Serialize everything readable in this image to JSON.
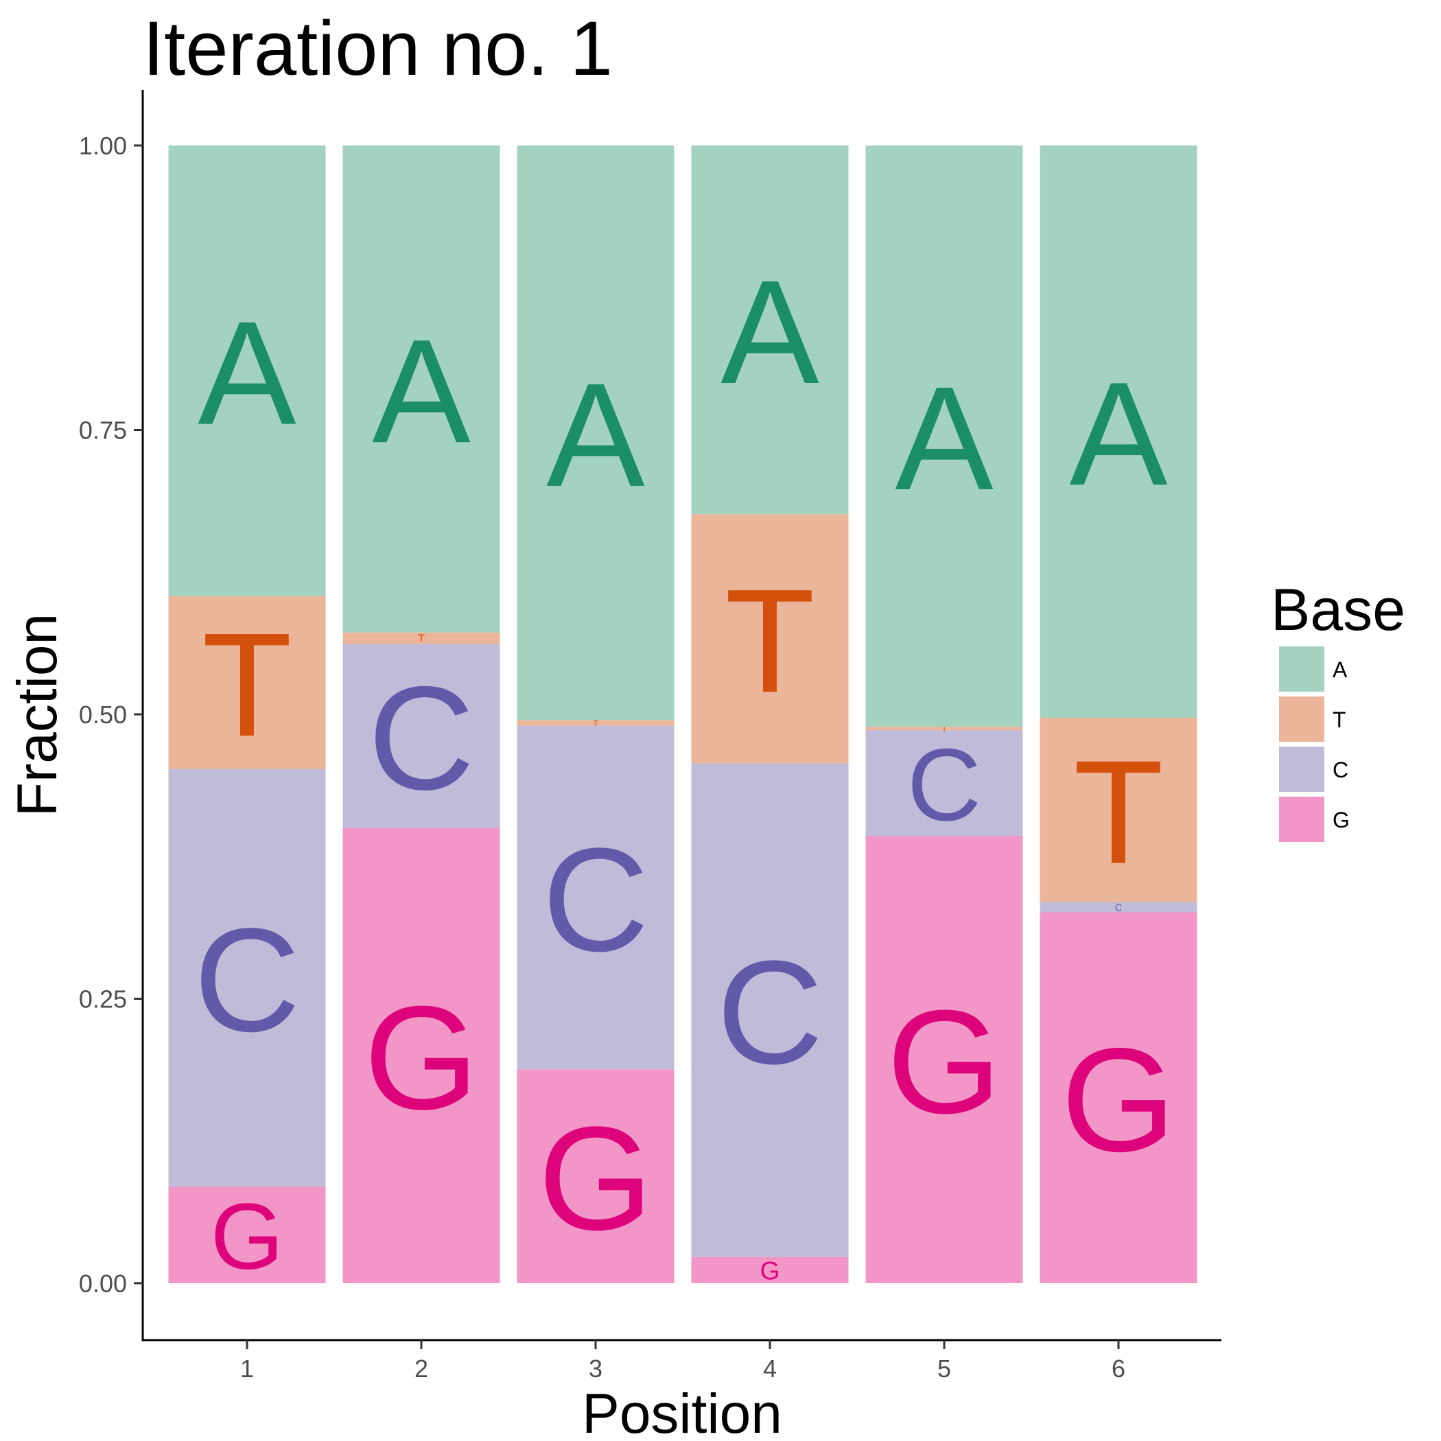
{
  "chart_data": {
    "type": "bar",
    "stacked": true,
    "title": "Iteration no. 1",
    "xlabel": "Position",
    "ylabel": "Fraction",
    "categories": [
      "1",
      "2",
      "3",
      "4",
      "5",
      "6"
    ],
    "yticks": [
      "0.00",
      "0.25",
      "0.50",
      "0.75",
      "1.00"
    ],
    "ylim": [
      -0.05,
      1.05
    ],
    "grid": false,
    "legend": {
      "title": "Base",
      "position": "right",
      "entries": [
        "A",
        "T",
        "C",
        "G"
      ]
    },
    "stack_order_bottom_to_top": [
      "G",
      "C",
      "T",
      "A"
    ],
    "series": [
      {
        "name": "G",
        "values": [
          0.085,
          0.4,
          0.188,
          0.023,
          0.393,
          0.326
        ],
        "fill": "#f196c6",
        "letter_color": "#dd047b"
      },
      {
        "name": "C",
        "values": [
          0.367,
          0.162,
          0.302,
          0.434,
          0.093,
          0.009
        ],
        "fill": "#bfbbd9",
        "letter_color": "#625aa8"
      },
      {
        "name": "T",
        "values": [
          0.152,
          0.01,
          0.005,
          0.219,
          0.003,
          0.162
        ],
        "fill": "#ebb59a",
        "letter_color": "#d3500d"
      },
      {
        "name": "A",
        "values": [
          0.396,
          0.428,
          0.505,
          0.324,
          0.511,
          0.503
        ],
        "fill": "#a4d2c1",
        "letter_color": "#1b8e66"
      }
    ]
  }
}
